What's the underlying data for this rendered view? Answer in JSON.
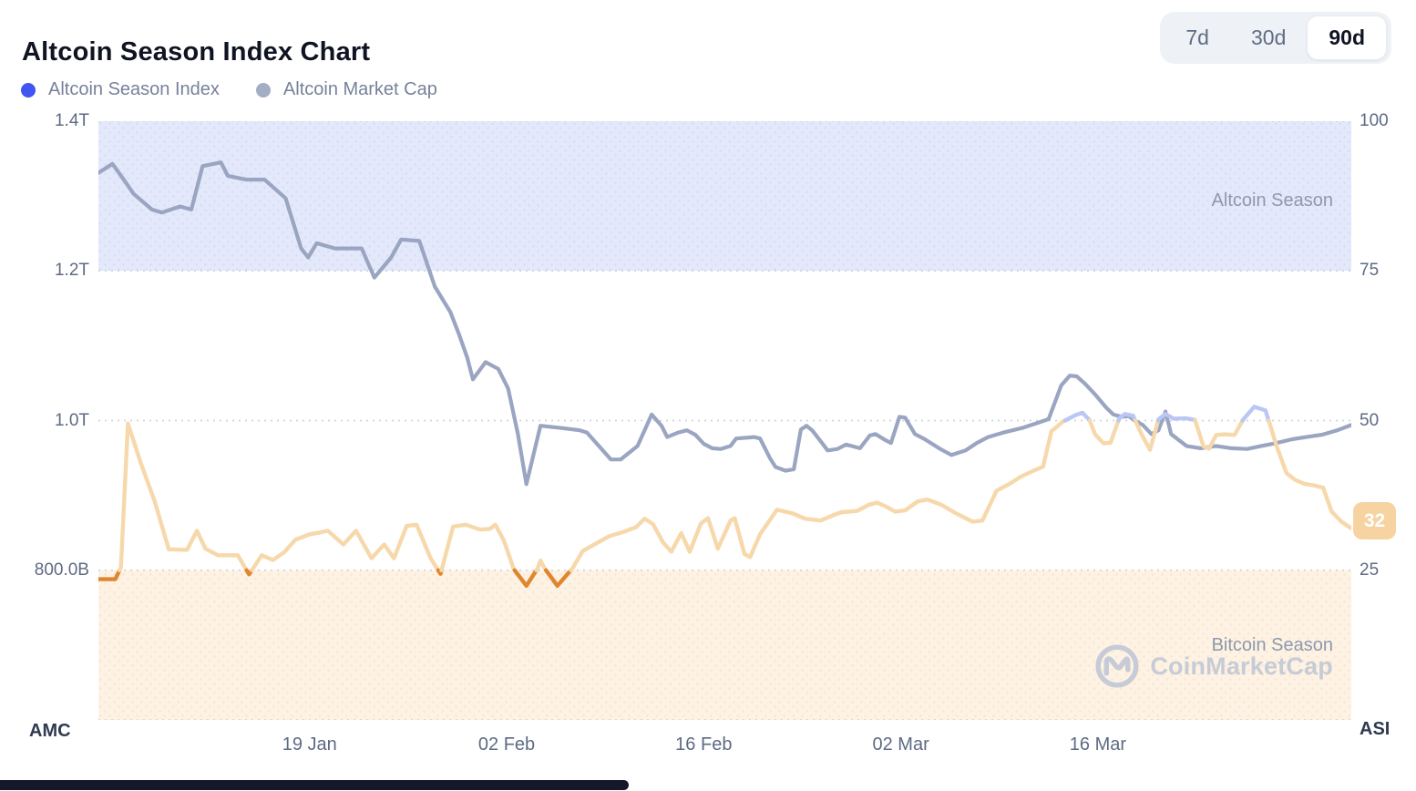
{
  "header": {
    "title": "Altcoin Season Index Chart",
    "ranges": [
      "7d",
      "30d",
      "90d"
    ],
    "active_range": "90d"
  },
  "legend": [
    {
      "label": "Altcoin Season Index",
      "color": "#4055f2"
    },
    {
      "label": "Altcoin Market Cap",
      "color": "#a3adc4"
    }
  ],
  "watermark": {
    "text": "CoinMarketCap",
    "logo_icon": "coinmarketcap-logo",
    "color": "#c6cbd7"
  },
  "bottom": {
    "amc_label": "AMC",
    "asi_label": "ASI"
  },
  "chart_data": {
    "type": "line",
    "title": "Altcoin Season Index Chart",
    "x_axis": {
      "tick_labels": [
        "19 Jan",
        "02 Feb",
        "16 Feb",
        "02 Mar",
        "16 Mar"
      ],
      "tick_days": [
        15,
        29,
        43,
        57,
        71
      ],
      "domain_days": [
        0,
        89
      ]
    },
    "left_axis": {
      "labels": [
        "1.4T",
        "1.2T",
        "1.0T",
        "800.0B"
      ],
      "top_value": 1.4,
      "bottom_value": 0.6,
      "units": "USD"
    },
    "right_axis": {
      "labels": [
        "100",
        "75",
        "50",
        "25"
      ],
      "range": [
        0,
        100
      ]
    },
    "grid_color": "#cfd5de",
    "bands": [
      {
        "label": "Altcoin Season",
        "range": [
          75,
          100
        ],
        "color": "#e4e8fb",
        "dot_color": "#d5daf6"
      },
      {
        "label": "Bitcoin Season",
        "range": [
          0,
          25
        ],
        "color": "#fdf2e3",
        "dot_color": "#f8e5cb"
      }
    ],
    "series": [
      {
        "name": "Altcoin Market Cap",
        "axis": "left",
        "color": "#9aa5c1",
        "points": [
          [
            0,
            1.331
          ],
          [
            1,
            1.343
          ],
          [
            1.8,
            1.322
          ],
          [
            2.5,
            1.303
          ],
          [
            3.8,
            1.282
          ],
          [
            4.5,
            1.278
          ],
          [
            5.8,
            1.286
          ],
          [
            6.6,
            1.282
          ],
          [
            7.4,
            1.34
          ],
          [
            8.7,
            1.345
          ],
          [
            9.2,
            1.327
          ],
          [
            10.5,
            1.322
          ],
          [
            11.8,
            1.322
          ],
          [
            13.3,
            1.297
          ],
          [
            14.4,
            1.23
          ],
          [
            14.9,
            1.218
          ],
          [
            15.5,
            1.237
          ],
          [
            16.8,
            1.23
          ],
          [
            18.7,
            1.23
          ],
          [
            19.6,
            1.191
          ],
          [
            20.8,
            1.218
          ],
          [
            21.5,
            1.242
          ],
          [
            22.8,
            1.24
          ],
          [
            23.9,
            1.179
          ],
          [
            25,
            1.145
          ],
          [
            25.6,
            1.116
          ],
          [
            26.2,
            1.084
          ],
          [
            26.6,
            1.055
          ],
          [
            27.5,
            1.078
          ],
          [
            28.4,
            1.069
          ],
          [
            29.1,
            1.043
          ],
          [
            29.8,
            0.982
          ],
          [
            30.4,
            0.915
          ],
          [
            31.4,
            0.993
          ],
          [
            32.9,
            0.99
          ],
          [
            34.2,
            0.987
          ],
          [
            34.7,
            0.984
          ],
          [
            36.4,
            0.948
          ],
          [
            37.1,
            0.948
          ],
          [
            38.3,
            0.966
          ],
          [
            39.3,
            1.008
          ],
          [
            40,
            0.993
          ],
          [
            40.4,
            0.978
          ],
          [
            41.2,
            0.984
          ],
          [
            41.8,
            0.987
          ],
          [
            42.4,
            0.981
          ],
          [
            43,
            0.969
          ],
          [
            43.6,
            0.963
          ],
          [
            44.2,
            0.962
          ],
          [
            44.9,
            0.966
          ],
          [
            45.3,
            0.976
          ],
          [
            46.6,
            0.978
          ],
          [
            47,
            0.976
          ],
          [
            47.7,
            0.95
          ],
          [
            48.1,
            0.938
          ],
          [
            48.8,
            0.933
          ],
          [
            49.4,
            0.935
          ],
          [
            49.9,
            0.988
          ],
          [
            50.3,
            0.993
          ],
          [
            50.7,
            0.987
          ],
          [
            51.4,
            0.97
          ],
          [
            51.8,
            0.96
          ],
          [
            52.5,
            0.962
          ],
          [
            53.1,
            0.968
          ],
          [
            53.5,
            0.966
          ],
          [
            54.1,
            0.963
          ],
          [
            54.8,
            0.98
          ],
          [
            55.2,
            0.982
          ],
          [
            55.9,
            0.974
          ],
          [
            56.3,
            0.97
          ],
          [
            56.9,
            1.005
          ],
          [
            57.3,
            1.004
          ],
          [
            58,
            0.982
          ],
          [
            58.7,
            0.975
          ],
          [
            59.8,
            0.962
          ],
          [
            60.6,
            0.954
          ],
          [
            61.6,
            0.96
          ],
          [
            62.4,
            0.97
          ],
          [
            63.2,
            0.978
          ],
          [
            64.3,
            0.984
          ],
          [
            65.6,
            0.99
          ],
          [
            66.9,
            0.998
          ],
          [
            67.5,
            1.002
          ],
          [
            68.4,
            1.047
          ],
          [
            69,
            1.06
          ],
          [
            69.5,
            1.059
          ],
          [
            70.1,
            1.049
          ],
          [
            70.8,
            1.035
          ],
          [
            71.6,
            1.017
          ],
          [
            72.1,
            1.008
          ],
          [
            72.7,
            1.005
          ],
          [
            73.2,
            1.006
          ],
          [
            73.6,
            1.0
          ],
          [
            74.2,
            0.994
          ],
          [
            74.8,
            0.982
          ],
          [
            75.3,
            0.987
          ],
          [
            75.8,
            1.012
          ],
          [
            76.2,
            0.982
          ],
          [
            77.3,
            0.966
          ],
          [
            78.3,
            0.963
          ],
          [
            79.4,
            0.966
          ],
          [
            80.5,
            0.963
          ],
          [
            81.6,
            0.962
          ],
          [
            82.6,
            0.966
          ],
          [
            83.7,
            0.97
          ],
          [
            84.8,
            0.975
          ],
          [
            85.8,
            0.978
          ],
          [
            86.9,
            0.981
          ],
          [
            88,
            0.987
          ],
          [
            89,
            0.994
          ]
        ]
      },
      {
        "name": "Altcoin Season Index",
        "axis": "right",
        "color_mid": "#f6d8ab",
        "color_above_50": "#bac7f4",
        "color_below_25": "#e0862f",
        "thresholds": {
          "high": 50,
          "low": 25
        },
        "points": [
          [
            0,
            23.5
          ],
          [
            1.2,
            23.5
          ],
          [
            1.6,
            25.5
          ],
          [
            2.1,
            49.5
          ],
          [
            3,
            43
          ],
          [
            4,
            36.5
          ],
          [
            5,
            28.5
          ],
          [
            6.3,
            28.4
          ],
          [
            7,
            31.6
          ],
          [
            7.6,
            28.6
          ],
          [
            8.5,
            27.5
          ],
          [
            9.9,
            27.5
          ],
          [
            10.7,
            24.3
          ],
          [
            11.6,
            27.5
          ],
          [
            12.4,
            26.7
          ],
          [
            13.2,
            28
          ],
          [
            14,
            30.1
          ],
          [
            15,
            31
          ],
          [
            15.7,
            31.3
          ],
          [
            16.3,
            31.6
          ],
          [
            17.4,
            29.3
          ],
          [
            18.3,
            31.6
          ],
          [
            19.4,
            27
          ],
          [
            20.3,
            29.3
          ],
          [
            21,
            27
          ],
          [
            21.9,
            32.4
          ],
          [
            22.6,
            32.6
          ],
          [
            23.6,
            27
          ],
          [
            24.3,
            24.4
          ],
          [
            25.2,
            32.3
          ],
          [
            26.1,
            32.6
          ],
          [
            27.1,
            31.8
          ],
          [
            27.8,
            31.9
          ],
          [
            28.2,
            32.6
          ],
          [
            28.8,
            30
          ],
          [
            29.5,
            25.2
          ],
          [
            30.4,
            22.4
          ],
          [
            31.2,
            25.3
          ],
          [
            31.4,
            26.6
          ],
          [
            31.7,
            25.3
          ],
          [
            32.6,
            22.4
          ],
          [
            33.7,
            25.4
          ],
          [
            34.4,
            28.2
          ],
          [
            35.3,
            29.4
          ],
          [
            36.3,
            30.7
          ],
          [
            37.3,
            31.4
          ],
          [
            38.2,
            32.2
          ],
          [
            38.8,
            33.6
          ],
          [
            39.4,
            32.7
          ],
          [
            40.1,
            29.7
          ],
          [
            40.7,
            28.1
          ],
          [
            41.4,
            31.2
          ],
          [
            42,
            28.1
          ],
          [
            42.8,
            32.8
          ],
          [
            43.3,
            33.7
          ],
          [
            44,
            28.6
          ],
          [
            44.9,
            33.3
          ],
          [
            45.2,
            33.7
          ],
          [
            45.9,
            27.7
          ],
          [
            46.3,
            27.2
          ],
          [
            47,
            31
          ],
          [
            48.2,
            35.1
          ],
          [
            49.3,
            34.5
          ],
          [
            50.2,
            33.6
          ],
          [
            51.3,
            33.3
          ],
          [
            52.2,
            34.2
          ],
          [
            52.8,
            34.7
          ],
          [
            53.9,
            34.9
          ],
          [
            54.7,
            35.9
          ],
          [
            55.3,
            36.3
          ],
          [
            55.9,
            35.7
          ],
          [
            56.6,
            34.8
          ],
          [
            57.3,
            35
          ],
          [
            58.2,
            36.5
          ],
          [
            58.9,
            36.8
          ],
          [
            59.9,
            35.9
          ],
          [
            61,
            34.4
          ],
          [
            62.1,
            33.1
          ],
          [
            62.8,
            33.3
          ],
          [
            63.8,
            38.3
          ],
          [
            64.7,
            39.4
          ],
          [
            65.5,
            40.6
          ],
          [
            66.4,
            41.6
          ],
          [
            67.1,
            42.3
          ],
          [
            67.7,
            48.2
          ],
          [
            68.5,
            49.8
          ],
          [
            69.4,
            50.9
          ],
          [
            69.9,
            51.3
          ],
          [
            70.4,
            50.1
          ],
          [
            70.8,
            47.7
          ],
          [
            71.4,
            46.2
          ],
          [
            71.9,
            46.3
          ],
          [
            72.5,
            50.3
          ],
          [
            72.9,
            51.1
          ],
          [
            73.5,
            50.8
          ],
          [
            74.1,
            47.7
          ],
          [
            74.7,
            45.1
          ],
          [
            75.3,
            50.2
          ],
          [
            75.8,
            51.1
          ],
          [
            76.4,
            50.3
          ],
          [
            77.2,
            50.4
          ],
          [
            77.9,
            50.1
          ],
          [
            78.5,
            45.7
          ],
          [
            78.9,
            45.3
          ],
          [
            79.4,
            47.6
          ],
          [
            80,
            47.7
          ],
          [
            80.7,
            47.6
          ],
          [
            81.3,
            50.1
          ],
          [
            82.1,
            52.3
          ],
          [
            82.9,
            51.7
          ],
          [
            83.2,
            49.5
          ],
          [
            83.7,
            45.7
          ],
          [
            84.4,
            41.2
          ],
          [
            85,
            40.1
          ],
          [
            85.7,
            39.4
          ],
          [
            86.3,
            39.2
          ],
          [
            87,
            38.8
          ],
          [
            87.6,
            34.8
          ],
          [
            88.3,
            33.1
          ],
          [
            89,
            32
          ]
        ]
      }
    ],
    "last_value_badge": {
      "text": "32",
      "bg": "#f6d3a1",
      "text_color": "#ffffff"
    },
    "band_labels": {
      "top": "Altcoin Season",
      "bottom": "Bitcoin Season"
    }
  }
}
